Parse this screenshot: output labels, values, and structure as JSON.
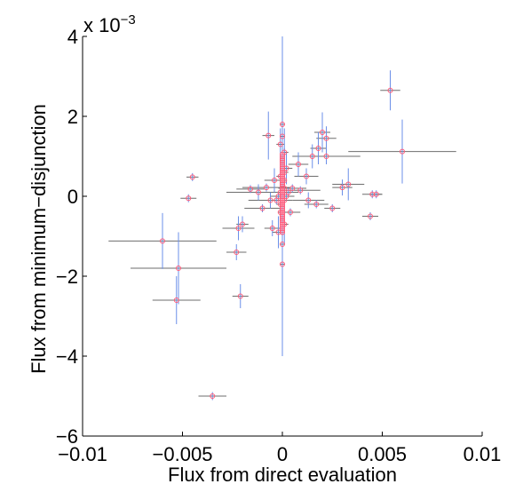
{
  "chart_data": {
    "type": "scatter",
    "xlabel": "Flux from direct evaluation",
    "ylabel": "Flux from minimum−disjunction",
    "y_multiplier_label": "x 10",
    "y_multiplier_exponent": "−3",
    "xlim": [
      -0.01,
      0.01
    ],
    "ylim": [
      -0.006,
      0.004
    ],
    "x_ticks": [
      -0.01,
      -0.005,
      0,
      0.005,
      0.01
    ],
    "x_tick_labels": [
      "−0.01",
      "−0.005",
      "0",
      "0.005",
      "0.01"
    ],
    "y_ticks": [
      -0.006,
      -0.004,
      -0.002,
      0,
      0.002,
      0.004
    ],
    "y_tick_labels": [
      "−6",
      "−4",
      "−2",
      "0",
      "2",
      "4"
    ],
    "grid": false,
    "legend": "none",
    "colors": {
      "marker": "#ff5a7a",
      "x_error": "#6e6e6e",
      "y_error": "#6b8fe8",
      "axis": "#000000"
    },
    "points": [
      {
        "x": 0.0054,
        "y": 0.00265,
        "xerr": 0.0005,
        "yerr": 0.0005
      },
      {
        "x": 0.006,
        "y": 0.00112,
        "xerr": 0.0027,
        "yerr": 0.0008
      },
      {
        "x": -0.006,
        "y": -0.00112,
        "xerr": 0.0027,
        "yerr": 0.0007
      },
      {
        "x": -0.0052,
        "y": -0.0018,
        "xerr": 0.0024,
        "yerr": 0.0009
      },
      {
        "x": -0.0053,
        "y": -0.0026,
        "xerr": 0.0012,
        "yerr": 0.0006
      },
      {
        "x": -0.0035,
        "y": -0.005,
        "xerr": 0.0007,
        "yerr": 0.0001
      },
      {
        "x": -0.0021,
        "y": -0.0025,
        "xerr": 0.0004,
        "yerr": 0.0003
      },
      {
        "x": -0.0023,
        "y": -0.0014,
        "xerr": 0.0005,
        "yerr": 0.0002
      },
      {
        "x": -0.0022,
        "y": -0.0008,
        "xerr": 0.0008,
        "yerr": 0.0003
      },
      {
        "x": -0.002,
        "y": -0.0007,
        "xerr": 0.0003,
        "yerr": 0.0002
      },
      {
        "x": -0.0045,
        "y": 0.00048,
        "xerr": 0.0003,
        "yerr": 0.0001
      },
      {
        "x": -0.0047,
        "y": -5e-05,
        "xerr": 0.0004,
        "yerr": 0.0001
      },
      {
        "x": -0.0007,
        "y": 0.00152,
        "xerr": 0.0003,
        "yerr": 0.0006
      },
      {
        "x": 0.002,
        "y": 0.0016,
        "xerr": 0.0004,
        "yerr": 0.0005
      },
      {
        "x": 0.0022,
        "y": 0.00145,
        "xerr": 0.0005,
        "yerr": 0.0003
      },
      {
        "x": 0.0018,
        "y": 0.0012,
        "xerr": 0.0004,
        "yerr": 0.0004
      },
      {
        "x": 0.0015,
        "y": 0.001,
        "xerr": 0.0004,
        "yerr": 0.0003
      },
      {
        "x": 0.0022,
        "y": 0.001,
        "xerr": 0.0017,
        "yerr": 0.0002
      },
      {
        "x": 0.003,
        "y": 0.00022,
        "xerr": 0.0005,
        "yerr": 0.0002
      },
      {
        "x": 0.0033,
        "y": 0.0003,
        "xerr": 0.0008,
        "yerr": 0.0004
      },
      {
        "x": 0.0045,
        "y": 5e-05,
        "xerr": 0.0005,
        "yerr": 0.0001
      },
      {
        "x": 0.0047,
        "y": 5e-05,
        "xerr": 0.0003,
        "yerr": 0.0001
      },
      {
        "x": 0.0044,
        "y": -0.0005,
        "xerr": 0.0004,
        "yerr": 0.0001
      },
      {
        "x": 0.0025,
        "y": -0.0003,
        "xerr": 0.0004,
        "yerr": 0.0001
      },
      {
        "x": 0.0017,
        "y": -0.0002,
        "xerr": 0.0006,
        "yerr": 0.0001
      },
      {
        "x": 0.0008,
        "y": 0.0008,
        "xerr": 0.0005,
        "yerr": 0.0003
      },
      {
        "x": 0.0012,
        "y": 0.0005,
        "xerr": 0.0006,
        "yerr": 0.0002
      },
      {
        "x": 0.0009,
        "y": 0.00015,
        "xerr": 0.001,
        "yerr": 0.0001
      },
      {
        "x": 0.0013,
        "y": -0.0001,
        "xerr": 0.0008,
        "yerr": 0.0002
      },
      {
        "x": -0.0008,
        "y": 0.00022,
        "xerr": 0.0012,
        "yerr": 0.0001
      },
      {
        "x": -0.0012,
        "y": 0.0001,
        "xerr": 0.0016,
        "yerr": 0.0002
      },
      {
        "x": -0.0006,
        "y": -0.0001,
        "xerr": 0.0011,
        "yerr": 0.0002
      },
      {
        "x": -0.001,
        "y": -0.0003,
        "xerr": 0.0009,
        "yerr": 0.0001
      },
      {
        "x": -0.0005,
        "y": -0.0008,
        "xerr": 0.0004,
        "yerr": 0.0002
      },
      {
        "x": -0.0004,
        "y": 0.0004,
        "xerr": 0.0005,
        "yerr": 0.0003
      },
      {
        "x": -0.0016,
        "y": 0.00018,
        "xerr": 0.0007,
        "yerr": 0.0001
      },
      {
        "x": 0.0005,
        "y": 0.0002,
        "xerr": 0.0007,
        "yerr": 0.0001
      },
      {
        "x": 0.0004,
        "y": -0.0004,
        "xerr": 0.0005,
        "yerr": 0.0001
      },
      {
        "x": 0.0002,
        "y": 0.0007,
        "xerr": 0.0003,
        "yerr": 0.0004
      },
      {
        "x": -0.0002,
        "y": -0.0009,
        "xerr": 0.0003,
        "yerr": 0.0004
      },
      {
        "x": 0.0,
        "y": 0.0018,
        "xerr": 0.0001,
        "yerr": 0.0021
      },
      {
        "x": 0.0,
        "y": 0.0,
        "xerr": 0.0001,
        "yerr": 0.004
      },
      {
        "x": 0.0,
        "y": -0.0017,
        "xerr": 0.0001,
        "yerr": 0.0008
      },
      {
        "x": 0.0001,
        "y": 0.0011,
        "xerr": 0.0002,
        "yerr": 0.0006
      },
      {
        "x": -0.0001,
        "y": 0.0013,
        "xerr": 0.0002,
        "yerr": 0.0004
      },
      {
        "x": 0.0,
        "y": 0.0009,
        "xerr": 0.0001,
        "yerr": 0.0005
      },
      {
        "x": 0.0001,
        "y": 0.0006,
        "xerr": 0.0002,
        "yerr": 0.0006
      },
      {
        "x": -0.0001,
        "y": 0.0005,
        "xerr": 0.0002,
        "yerr": 0.0005
      },
      {
        "x": 0.0,
        "y": 0.0003,
        "xerr": 0.0001,
        "yerr": 0.0003
      },
      {
        "x": 0.0001,
        "y": 0.0002,
        "xerr": 0.0003,
        "yerr": 0.0002
      },
      {
        "x": -0.0001,
        "y": 0.0001,
        "xerr": 0.0003,
        "yerr": 0.0001
      },
      {
        "x": 0.0,
        "y": 0.0,
        "xerr": 0.0002,
        "yerr": 0.0001
      },
      {
        "x": 0.0001,
        "y": -0.0001,
        "xerr": 0.0002,
        "yerr": 0.0002
      },
      {
        "x": -0.0001,
        "y": -0.0002,
        "xerr": 0.0002,
        "yerr": 0.0002
      },
      {
        "x": 0.0,
        "y": -0.0003,
        "xerr": 0.0001,
        "yerr": 0.0003
      },
      {
        "x": 0.0,
        "y": -0.0005,
        "xerr": 0.0001,
        "yerr": 0.0004
      },
      {
        "x": 0.0001,
        "y": -0.0007,
        "xerr": 0.0002,
        "yerr": 0.0005
      },
      {
        "x": 0.0,
        "y": -0.0009,
        "xerr": 0.0001,
        "yerr": 0.0006
      },
      {
        "x": 0.0,
        "y": -0.0012,
        "xerr": 0.0001,
        "yerr": 0.0005
      },
      {
        "x": 0.0,
        "y": 0.0015,
        "xerr": 0.0001,
        "yerr": 0.0003
      },
      {
        "x": 0.0002,
        "y": 0.0,
        "xerr": 0.0004,
        "yerr": 0.0001
      },
      {
        "x": -0.0002,
        "y": 0.0,
        "xerr": 0.0004,
        "yerr": 0.0001
      },
      {
        "x": 0.0003,
        "y": 0.0001,
        "xerr": 0.0005,
        "yerr": 0.0001
      },
      {
        "x": -0.0003,
        "y": -0.0001,
        "xerr": 0.0005,
        "yerr": 0.0001
      },
      {
        "x": 0.0001,
        "y": 0.0004,
        "xerr": 0.0001,
        "yerr": 0.0002
      },
      {
        "x": -0.0001,
        "y": -0.0004,
        "xerr": 0.0001,
        "yerr": 0.0002
      },
      {
        "x": 0.0,
        "y": 0.0007,
        "xerr": 0.0001,
        "yerr": 0.0003
      },
      {
        "x": 0.0,
        "y": -0.0006,
        "xerr": 0.0001,
        "yerr": 0.0003
      }
    ]
  }
}
